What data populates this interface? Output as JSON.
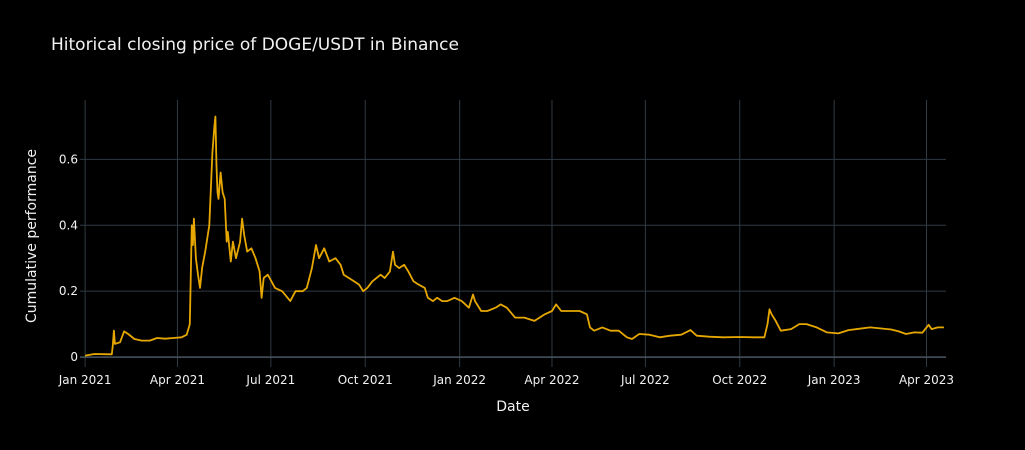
{
  "chart_data": {
    "type": "line",
    "title": "Hitorical closing price of DOGE/USDT in Binance",
    "xlabel": "Date",
    "ylabel": "Cumulative performance",
    "x_range": [
      "2020-12-27",
      "2023-04-20"
    ],
    "ylim": [
      -0.03,
      0.78
    ],
    "x_ticks": [
      {
        "date": "2021-01-01",
        "label": "Jan 2021"
      },
      {
        "date": "2021-04-01",
        "label": "Apr 2021"
      },
      {
        "date": "2021-07-01",
        "label": "Jul 2021"
      },
      {
        "date": "2021-10-01",
        "label": "Oct 2021"
      },
      {
        "date": "2022-01-01",
        "label": "Jan 2022"
      },
      {
        "date": "2022-04-01",
        "label": "Apr 2022"
      },
      {
        "date": "2022-07-01",
        "label": "Jul 2022"
      },
      {
        "date": "2022-10-01",
        "label": "Oct 2022"
      },
      {
        "date": "2023-01-01",
        "label": "Jan 2023"
      },
      {
        "date": "2023-04-01",
        "label": "Apr 2023"
      }
    ],
    "y_ticks": [
      {
        "value": 0,
        "label": "0"
      },
      {
        "value": 0.2,
        "label": "0.2"
      },
      {
        "value": 0.4,
        "label": "0.4"
      },
      {
        "value": 0.6,
        "label": "0.6"
      }
    ],
    "grid": true,
    "line_color": "#e6a800",
    "background": "#000000",
    "series": [
      {
        "points": [
          [
            "2021-01-01",
            0.0047
          ],
          [
            "2021-01-10",
            0.0095
          ],
          [
            "2021-01-20",
            0.0088
          ],
          [
            "2021-01-27",
            0.0085
          ],
          [
            "2021-01-28",
            0.035
          ],
          [
            "2021-01-29",
            0.08
          ],
          [
            "2021-01-30",
            0.04
          ],
          [
            "2021-02-04",
            0.045
          ],
          [
            "2021-02-08",
            0.078
          ],
          [
            "2021-02-12",
            0.07
          ],
          [
            "2021-02-18",
            0.055
          ],
          [
            "2021-02-25",
            0.05
          ],
          [
            "2021-03-05",
            0.05
          ],
          [
            "2021-03-12",
            0.058
          ],
          [
            "2021-03-20",
            0.056
          ],
          [
            "2021-03-28",
            0.058
          ],
          [
            "2021-04-05",
            0.06
          ],
          [
            "2021-04-10",
            0.068
          ],
          [
            "2021-04-13",
            0.1
          ],
          [
            "2021-04-15",
            0.4
          ],
          [
            "2021-04-16",
            0.34
          ],
          [
            "2021-04-17",
            0.42
          ],
          [
            "2021-04-19",
            0.3
          ],
          [
            "2021-04-21",
            0.25
          ],
          [
            "2021-04-23",
            0.21
          ],
          [
            "2021-04-25",
            0.27
          ],
          [
            "2021-04-28",
            0.32
          ],
          [
            "2021-05-02",
            0.4
          ],
          [
            "2021-05-05",
            0.62
          ],
          [
            "2021-05-07",
            0.7
          ],
          [
            "2021-05-08",
            0.73
          ],
          [
            "2021-05-09",
            0.58
          ],
          [
            "2021-05-10",
            0.5
          ],
          [
            "2021-05-11",
            0.48
          ],
          [
            "2021-05-13",
            0.56
          ],
          [
            "2021-05-15",
            0.5
          ],
          [
            "2021-05-17",
            0.48
          ],
          [
            "2021-05-19",
            0.35
          ],
          [
            "2021-05-20",
            0.38
          ],
          [
            "2021-05-23",
            0.29
          ],
          [
            "2021-05-25",
            0.35
          ],
          [
            "2021-05-28",
            0.3
          ],
          [
            "2021-06-01",
            0.35
          ],
          [
            "2021-06-03",
            0.42
          ],
          [
            "2021-06-05",
            0.37
          ],
          [
            "2021-06-08",
            0.32
          ],
          [
            "2021-06-12",
            0.33
          ],
          [
            "2021-06-16",
            0.3
          ],
          [
            "2021-06-20",
            0.26
          ],
          [
            "2021-06-22",
            0.18
          ],
          [
            "2021-06-24",
            0.24
          ],
          [
            "2021-06-28",
            0.25
          ],
          [
            "2021-07-05",
            0.21
          ],
          [
            "2021-07-12",
            0.2
          ],
          [
            "2021-07-20",
            0.17
          ],
          [
            "2021-07-25",
            0.2
          ],
          [
            "2021-08-01",
            0.2
          ],
          [
            "2021-08-05",
            0.21
          ],
          [
            "2021-08-10",
            0.27
          ],
          [
            "2021-08-14",
            0.34
          ],
          [
            "2021-08-17",
            0.3
          ],
          [
            "2021-08-22",
            0.33
          ],
          [
            "2021-08-27",
            0.29
          ],
          [
            "2021-09-02",
            0.3
          ],
          [
            "2021-09-07",
            0.28
          ],
          [
            "2021-09-10",
            0.25
          ],
          [
            "2021-09-20",
            0.23
          ],
          [
            "2021-09-25",
            0.22
          ],
          [
            "2021-09-29",
            0.2
          ],
          [
            "2021-10-03",
            0.21
          ],
          [
            "2021-10-08",
            0.23
          ],
          [
            "2021-10-12",
            0.24
          ],
          [
            "2021-10-16",
            0.25
          ],
          [
            "2021-10-20",
            0.24
          ],
          [
            "2021-10-25",
            0.26
          ],
          [
            "2021-10-28",
            0.32
          ],
          [
            "2021-10-30",
            0.28
          ],
          [
            "2021-11-03",
            0.27
          ],
          [
            "2021-11-08",
            0.28
          ],
          [
            "2021-11-12",
            0.26
          ],
          [
            "2021-11-17",
            0.23
          ],
          [
            "2021-11-22",
            0.22
          ],
          [
            "2021-11-28",
            0.21
          ],
          [
            "2021-12-01",
            0.18
          ],
          [
            "2021-12-06",
            0.17
          ],
          [
            "2021-12-10",
            0.18
          ],
          [
            "2021-12-15",
            0.17
          ],
          [
            "2021-12-20",
            0.17
          ],
          [
            "2021-12-27",
            0.18
          ],
          [
            "2022-01-03",
            0.17
          ],
          [
            "2022-01-10",
            0.15
          ],
          [
            "2022-01-14",
            0.19
          ],
          [
            "2022-01-16",
            0.17
          ],
          [
            "2022-01-22",
            0.14
          ],
          [
            "2022-01-28",
            0.14
          ],
          [
            "2022-02-05",
            0.15
          ],
          [
            "2022-02-10",
            0.16
          ],
          [
            "2022-02-16",
            0.15
          ],
          [
            "2022-02-24",
            0.12
          ],
          [
            "2022-03-05",
            0.12
          ],
          [
            "2022-03-15",
            0.11
          ],
          [
            "2022-03-25",
            0.13
          ],
          [
            "2022-04-01",
            0.14
          ],
          [
            "2022-04-05",
            0.16
          ],
          [
            "2022-04-10",
            0.14
          ],
          [
            "2022-04-20",
            0.14
          ],
          [
            "2022-04-28",
            0.14
          ],
          [
            "2022-05-05",
            0.13
          ],
          [
            "2022-05-08",
            0.09
          ],
          [
            "2022-05-12",
            0.08
          ],
          [
            "2022-05-20",
            0.09
          ],
          [
            "2022-05-28",
            0.08
          ],
          [
            "2022-06-05",
            0.08
          ],
          [
            "2022-06-13",
            0.06
          ],
          [
            "2022-06-18",
            0.055
          ],
          [
            "2022-06-25",
            0.07
          ],
          [
            "2022-07-05",
            0.068
          ],
          [
            "2022-07-15",
            0.06
          ],
          [
            "2022-07-25",
            0.065
          ],
          [
            "2022-08-05",
            0.068
          ],
          [
            "2022-08-14",
            0.082
          ],
          [
            "2022-08-20",
            0.065
          ],
          [
            "2022-09-01",
            0.062
          ],
          [
            "2022-09-15",
            0.06
          ],
          [
            "2022-10-01",
            0.061
          ],
          [
            "2022-10-15",
            0.06
          ],
          [
            "2022-10-25",
            0.06
          ],
          [
            "2022-10-28",
            0.1
          ],
          [
            "2022-10-30",
            0.145
          ],
          [
            "2022-11-01",
            0.13
          ],
          [
            "2022-11-05",
            0.11
          ],
          [
            "2022-11-10",
            0.08
          ],
          [
            "2022-11-20",
            0.085
          ],
          [
            "2022-11-28",
            0.1
          ],
          [
            "2022-12-05",
            0.1
          ],
          [
            "2022-12-15",
            0.09
          ],
          [
            "2022-12-25",
            0.075
          ],
          [
            "2023-01-05",
            0.072
          ],
          [
            "2023-01-15",
            0.082
          ],
          [
            "2023-01-25",
            0.086
          ],
          [
            "2023-02-05",
            0.09
          ],
          [
            "2023-02-15",
            0.087
          ],
          [
            "2023-02-25",
            0.084
          ],
          [
            "2023-03-05",
            0.078
          ],
          [
            "2023-03-12",
            0.07
          ],
          [
            "2023-03-20",
            0.075
          ],
          [
            "2023-03-28",
            0.074
          ],
          [
            "2023-04-03",
            0.098
          ],
          [
            "2023-04-06",
            0.085
          ],
          [
            "2023-04-12",
            0.09
          ],
          [
            "2023-04-18",
            0.09
          ]
        ]
      }
    ]
  }
}
